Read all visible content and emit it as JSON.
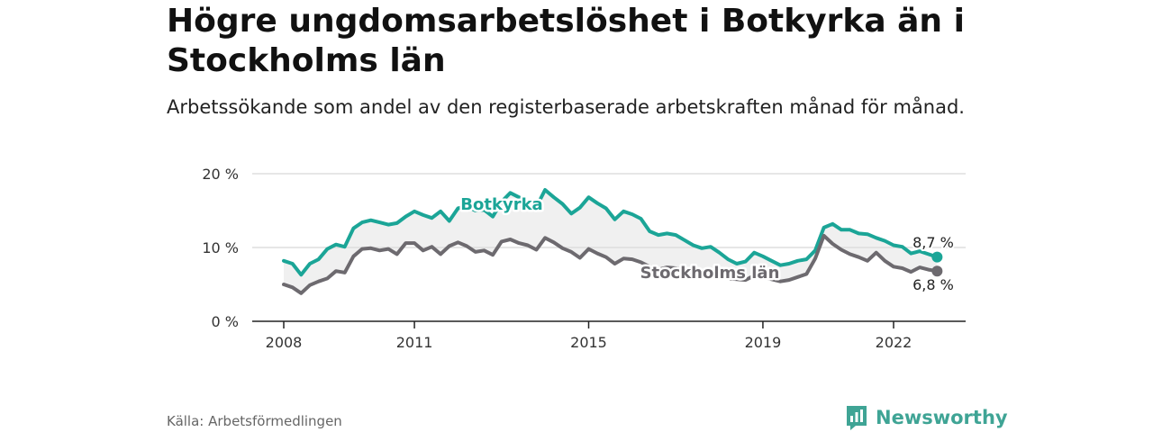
{
  "title": "Högre ungdomsarbetslöshet i Botkyrka än i Stockholms län",
  "subtitle": "Arbetssökande som andel av den registerbaserade arbetskraften månad för månad.",
  "source": "Källa: Arbetsförmedlingen",
  "brand": {
    "name": "Newsworthy",
    "icon": "newsworthy-logo-icon"
  },
  "colors": {
    "botkyrka": "#1ba597",
    "stockholm": "#6d6a6f",
    "band": "#f0f0f0",
    "grid": "#dddddd",
    "axis": "#222222"
  },
  "chart_data": {
    "type": "line",
    "title": "Högre ungdomsarbetslöshet i Botkyrka än i Stockholms län",
    "xlabel": "",
    "ylabel": "",
    "xlim": [
      2008.0,
      2023.25
    ],
    "ylim": [
      0,
      20
    ],
    "x_ticks": [
      2008,
      2011,
      2015,
      2019,
      2022
    ],
    "y_ticks": [
      0,
      10,
      20
    ],
    "y_tick_labels": [
      "0 %",
      "10 %",
      "20 %"
    ],
    "series": [
      {
        "name": "Botkyrka",
        "color": "#1ba597",
        "end_label": "8,7 %",
        "points": [
          [
            2008.0,
            8.2
          ],
          [
            2008.2,
            7.8
          ],
          [
            2008.4,
            6.3
          ],
          [
            2008.6,
            7.8
          ],
          [
            2008.8,
            8.4
          ],
          [
            2009.0,
            9.8
          ],
          [
            2009.2,
            10.4
          ],
          [
            2009.4,
            10.1
          ],
          [
            2009.6,
            12.6
          ],
          [
            2009.8,
            13.4
          ],
          [
            2010.0,
            13.7
          ],
          [
            2010.2,
            13.4
          ],
          [
            2010.4,
            13.1
          ],
          [
            2010.6,
            13.3
          ],
          [
            2010.8,
            14.2
          ],
          [
            2011.0,
            14.9
          ],
          [
            2011.2,
            14.4
          ],
          [
            2011.4,
            14.0
          ],
          [
            2011.6,
            14.9
          ],
          [
            2011.8,
            13.6
          ],
          [
            2012.0,
            15.3
          ],
          [
            2012.2,
            15.6
          ],
          [
            2012.4,
            15.0
          ],
          [
            2012.6,
            15.1
          ],
          [
            2012.8,
            14.2
          ],
          [
            2013.0,
            16.2
          ],
          [
            2013.2,
            17.4
          ],
          [
            2013.4,
            16.8
          ],
          [
            2013.6,
            16.3
          ],
          [
            2013.8,
            15.5
          ],
          [
            2014.0,
            17.8
          ],
          [
            2014.2,
            16.8
          ],
          [
            2014.4,
            15.9
          ],
          [
            2014.6,
            14.6
          ],
          [
            2014.8,
            15.4
          ],
          [
            2015.0,
            16.8
          ],
          [
            2015.2,
            16.0
          ],
          [
            2015.4,
            15.3
          ],
          [
            2015.6,
            13.8
          ],
          [
            2015.8,
            14.9
          ],
          [
            2016.0,
            14.5
          ],
          [
            2016.2,
            13.9
          ],
          [
            2016.4,
            12.2
          ],
          [
            2016.6,
            11.7
          ],
          [
            2016.8,
            11.9
          ],
          [
            2017.0,
            11.7
          ],
          [
            2017.2,
            11.0
          ],
          [
            2017.4,
            10.3
          ],
          [
            2017.6,
            9.9
          ],
          [
            2017.8,
            10.1
          ],
          [
            2018.0,
            9.3
          ],
          [
            2018.2,
            8.4
          ],
          [
            2018.4,
            7.8
          ],
          [
            2018.6,
            8.1
          ],
          [
            2018.8,
            9.3
          ],
          [
            2019.0,
            8.8
          ],
          [
            2019.2,
            8.2
          ],
          [
            2019.4,
            7.6
          ],
          [
            2019.6,
            7.8
          ],
          [
            2019.8,
            8.2
          ],
          [
            2020.0,
            8.4
          ],
          [
            2020.2,
            9.6
          ],
          [
            2020.4,
            12.7
          ],
          [
            2020.6,
            13.2
          ],
          [
            2020.8,
            12.4
          ],
          [
            2021.0,
            12.4
          ],
          [
            2021.2,
            11.9
          ],
          [
            2021.4,
            11.8
          ],
          [
            2021.6,
            11.3
          ],
          [
            2021.8,
            10.9
          ],
          [
            2022.0,
            10.3
          ],
          [
            2022.2,
            10.1
          ],
          [
            2022.4,
            9.2
          ],
          [
            2022.6,
            9.5
          ],
          [
            2022.8,
            9.1
          ],
          [
            2023.0,
            8.7
          ]
        ]
      },
      {
        "name": "Stockholms län",
        "color": "#6d6a6f",
        "end_label": "6,8 %",
        "points": [
          [
            2008.0,
            5.0
          ],
          [
            2008.2,
            4.6
          ],
          [
            2008.4,
            3.8
          ],
          [
            2008.6,
            4.9
          ],
          [
            2008.8,
            5.4
          ],
          [
            2009.0,
            5.8
          ],
          [
            2009.2,
            6.8
          ],
          [
            2009.4,
            6.6
          ],
          [
            2009.6,
            8.8
          ],
          [
            2009.8,
            9.8
          ],
          [
            2010.0,
            9.9
          ],
          [
            2010.2,
            9.6
          ],
          [
            2010.4,
            9.8
          ],
          [
            2010.6,
            9.1
          ],
          [
            2010.8,
            10.6
          ],
          [
            2011.0,
            10.6
          ],
          [
            2011.2,
            9.6
          ],
          [
            2011.4,
            10.1
          ],
          [
            2011.6,
            9.1
          ],
          [
            2011.8,
            10.2
          ],
          [
            2012.0,
            10.7
          ],
          [
            2012.2,
            10.2
          ],
          [
            2012.4,
            9.4
          ],
          [
            2012.6,
            9.6
          ],
          [
            2012.8,
            9.0
          ],
          [
            2013.0,
            10.8
          ],
          [
            2013.2,
            11.1
          ],
          [
            2013.4,
            10.6
          ],
          [
            2013.6,
            10.3
          ],
          [
            2013.8,
            9.7
          ],
          [
            2014.0,
            11.3
          ],
          [
            2014.2,
            10.7
          ],
          [
            2014.4,
            9.9
          ],
          [
            2014.6,
            9.4
          ],
          [
            2014.8,
            8.6
          ],
          [
            2015.0,
            9.8
          ],
          [
            2015.2,
            9.2
          ],
          [
            2015.4,
            8.7
          ],
          [
            2015.6,
            7.8
          ],
          [
            2015.8,
            8.5
          ],
          [
            2016.0,
            8.4
          ],
          [
            2016.2,
            8.0
          ],
          [
            2016.4,
            7.4
          ],
          [
            2016.6,
            7.0
          ],
          [
            2016.8,
            7.3
          ],
          [
            2017.0,
            7.2
          ],
          [
            2017.2,
            6.9
          ],
          [
            2017.4,
            6.4
          ],
          [
            2017.6,
            6.3
          ],
          [
            2017.8,
            6.6
          ],
          [
            2018.0,
            6.3
          ],
          [
            2018.2,
            5.8
          ],
          [
            2018.4,
            5.7
          ],
          [
            2018.6,
            5.6
          ],
          [
            2018.8,
            6.2
          ],
          [
            2019.0,
            6.1
          ],
          [
            2019.2,
            5.7
          ],
          [
            2019.4,
            5.4
          ],
          [
            2019.6,
            5.6
          ],
          [
            2019.8,
            6.0
          ],
          [
            2020.0,
            6.4
          ],
          [
            2020.2,
            8.5
          ],
          [
            2020.4,
            11.6
          ],
          [
            2020.6,
            10.5
          ],
          [
            2020.8,
            9.7
          ],
          [
            2021.0,
            9.1
          ],
          [
            2021.2,
            8.7
          ],
          [
            2021.4,
            8.2
          ],
          [
            2021.6,
            9.3
          ],
          [
            2021.8,
            8.2
          ],
          [
            2022.0,
            7.4
          ],
          [
            2022.2,
            7.2
          ],
          [
            2022.4,
            6.7
          ],
          [
            2022.6,
            7.3
          ],
          [
            2022.8,
            7.0
          ],
          [
            2023.0,
            6.8
          ]
        ]
      }
    ]
  }
}
